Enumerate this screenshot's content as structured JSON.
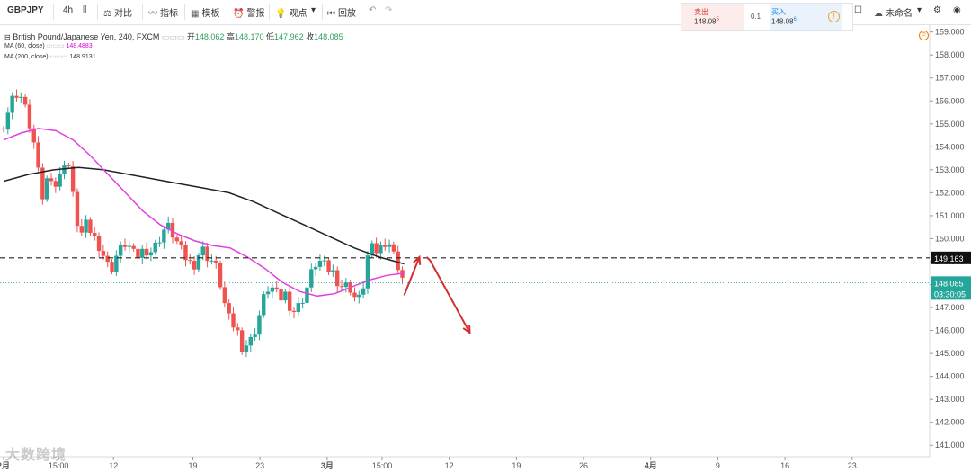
{
  "toolbar": {
    "symbol": "GBPJPY",
    "interval": "4h",
    "compare": "对比",
    "indicators": "指标",
    "templates": "模板",
    "alert": "警报",
    "ideas": "观点",
    "replay": "回放",
    "layout_name": "未命名"
  },
  "trade_panel": {
    "sell_label": "卖出",
    "sell_price": "148.08",
    "sell_sup": "5",
    "spread": "0.1",
    "buy_label": "买入",
    "buy_price": "148.08",
    "buy_sup": "6"
  },
  "legend": {
    "title": "British Pound/Japanese Yen, 240, FXCM",
    "open_label": "开",
    "open": "148.062",
    "high_label": "高",
    "high": "148.170",
    "low_label": "低",
    "low": "147.962",
    "close_label": "收",
    "close": "148.085",
    "ma60_label": "MA (60, close)",
    "ma60_value": "148.4883",
    "ma200_label": "MA (200, close)",
    "ma200_value": "148.9131"
  },
  "price_labels": {
    "level": "149.163",
    "current": "148.085",
    "countdown": "03:30:05"
  },
  "watermark": "大数跨境",
  "colors": {
    "up": "#26a69a",
    "down": "#ef5350",
    "ma60": "#e040e0",
    "ma200": "#222222",
    "arrow": "#d32f2f",
    "current_line": "#26a69a"
  },
  "chart_data": {
    "type": "candlestick",
    "ylim": [
      140.5,
      159.3
    ],
    "y_ticks": [
      141,
      142,
      143,
      144,
      145,
      146,
      147,
      148,
      149,
      150,
      151,
      152,
      153,
      154,
      155,
      156,
      157,
      158,
      159
    ],
    "x_ticks": [
      "2月",
      "15:00",
      "12",
      "19",
      "23",
      "3月",
      "15:00",
      "12",
      "19",
      "26",
      "4月",
      "9",
      "16",
      "23"
    ],
    "x_tick_pos": [
      0,
      9,
      18,
      31,
      42,
      53,
      62,
      73,
      84,
      95,
      106,
      117,
      128,
      139
    ],
    "horizontal_level": 149.163,
    "current_price": 148.085,
    "close_path": [
      155.0,
      155.6,
      156.2,
      156.4,
      156.0,
      155.2,
      154.5,
      153.0,
      151.8,
      152.6,
      152.8,
      152.1,
      153.1,
      153.7,
      152.2,
      150.8,
      150.2,
      150.6,
      150.3,
      149.9,
      149.6,
      149.0,
      148.6,
      149.2,
      149.5,
      149.8,
      149.6,
      149.2,
      149.3,
      149.6,
      149.4,
      149.6,
      150.0,
      150.4,
      150.5,
      150.1,
      149.7,
      149.3,
      149.0,
      148.8,
      149.3,
      149.5,
      149.2,
      149.0,
      148.6,
      147.6,
      146.6,
      146.3,
      146.0,
      145.3,
      145.4,
      145.6,
      146.2,
      147.0,
      147.8,
      147.9,
      147.6,
      147.4,
      147.6,
      147.0,
      146.8,
      147.2,
      147.6,
      148.3,
      148.9,
      149.0,
      148.8,
      148.6,
      148.5,
      148.0,
      147.9,
      148.0,
      147.5,
      147.3,
      148.0,
      149.4,
      149.6,
      149.4,
      149.8,
      150.0,
      149.4,
      148.9,
      148.3
    ],
    "ma60": [
      154.3,
      154.6,
      154.8,
      154.7,
      154.3,
      153.6,
      152.8,
      152.0,
      151.2,
      150.6,
      150.2,
      149.9,
      149.7,
      149.6,
      149.2,
      148.7,
      148.1,
      147.7,
      147.5,
      147.6,
      147.9,
      148.2,
      148.4,
      148.5
    ],
    "ma200": [
      152.5,
      152.8,
      153.0,
      153.1,
      153.0,
      152.8,
      152.6,
      152.4,
      152.2,
      152.0,
      151.6,
      151.1,
      150.6,
      150.1,
      149.6,
      149.2,
      148.9
    ],
    "projection_arrows": [
      {
        "from": [
          148.0
        ],
        "to": [
          149.2
        ]
      },
      {
        "from": [
          149.2
        ],
        "to": [
          145.9
        ]
      }
    ]
  }
}
